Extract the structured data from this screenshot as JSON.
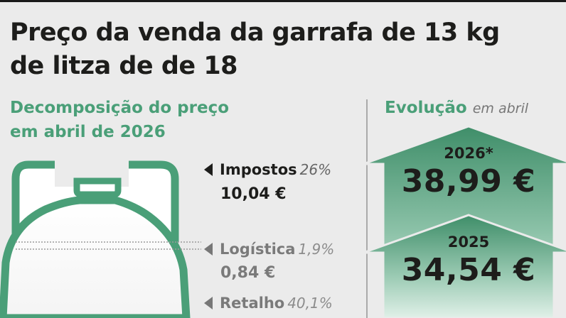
{
  "title": {
    "line1": "Preço da venda da  garrafa de 13 kg",
    "line2": "de litza de de 18"
  },
  "left_section": {
    "heading_line1": "Decomposição do preço",
    "heading_line2": "em abril de 2026"
  },
  "right_section": {
    "heading": "Evolução",
    "heading_sub": "em abril"
  },
  "colors": {
    "accent_green": "#4a9f78",
    "arrow_dark": "#3f8e69",
    "arrow_light": "#cfe8dc",
    "text_dark": "#1d1d1b",
    "muted": "#7a7a7a"
  },
  "chart_data": [
    {
      "type": "table",
      "title": "Decomposição do preço em abril de 2026",
      "segments": [
        {
          "name": "Impostos",
          "percent_label": "26%",
          "percent": 26,
          "value_label": "10,04 €",
          "value": 10.04,
          "muted": false
        },
        {
          "name": "Logística",
          "percent_label": "1,9%",
          "percent": 1.9,
          "value_label": "0,84 €",
          "value": 0.84,
          "muted": true
        },
        {
          "name": "Retalho",
          "percent_label": "40,1%",
          "percent": 40.1,
          "muted": true
        }
      ]
    },
    {
      "type": "bar",
      "title": "Evolução em abril",
      "categories": [
        "2026*",
        "2025"
      ],
      "values": [
        38.99,
        34.54
      ],
      "value_labels": [
        "38,99 €",
        "34,54 €"
      ]
    }
  ]
}
